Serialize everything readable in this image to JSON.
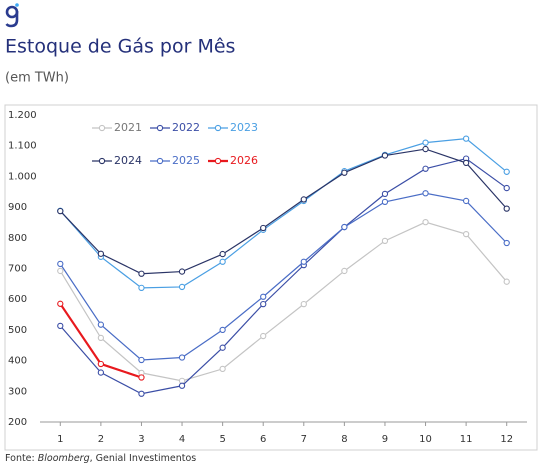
{
  "chart_data": {
    "type": "line",
    "title": "Estoque de Gás por Mês",
    "subtitle": "(em TWh)",
    "source_prefix": "Fonte:",
    "source_name": "Bloomberg",
    "source_rest": ", Genial Investimentos",
    "x": [
      1,
      2,
      3,
      4,
      5,
      6,
      7,
      8,
      9,
      10,
      11,
      12
    ],
    "xlim": [
      0.5,
      12.5
    ],
    "ylim": [
      200,
      1200
    ],
    "yticks": [
      200,
      300,
      400,
      500,
      600,
      700,
      800,
      900,
      {
        "value": 1000,
        "label": "1.000"
      },
      {
        "value": 1100,
        "label": "1.100"
      },
      {
        "value": 1200,
        "label": "1.200"
      }
    ],
    "grid": false,
    "series": [
      {
        "name": "2021",
        "color": "#c4c4c4",
        "values": [
          692,
          474,
          360,
          334,
          373,
          480,
          584,
          692,
          790,
          851,
          812,
          657
        ]
      },
      {
        "name": "2022",
        "color": "#3b4ea6",
        "values": [
          513,
          361,
          292,
          318,
          442,
          584,
          711,
          835,
          943,
          1025,
          1058,
          962
        ]
      },
      {
        "name": "2023",
        "color": "#4a9fe3",
        "values": [
          888,
          738,
          637,
          640,
          722,
          826,
          920,
          1017,
          1070,
          1110,
          1123,
          1015
        ]
      },
      {
        "name": "2024",
        "color": "#2a3466",
        "values": [
          887,
          748,
          683,
          690,
          747,
          832,
          925,
          1012,
          1068,
          1089,
          1044,
          895
        ]
      },
      {
        "name": "2025",
        "color": "#4a6dc6",
        "values": [
          715,
          517,
          402,
          410,
          500,
          608,
          722,
          835,
          917,
          945,
          920,
          783
        ]
      },
      {
        "name": "2026",
        "color": "#e8191e",
        "values": [
          585,
          389,
          345,
          null,
          null,
          null,
          null,
          null,
          null,
          null,
          null,
          null
        ]
      }
    ]
  }
}
